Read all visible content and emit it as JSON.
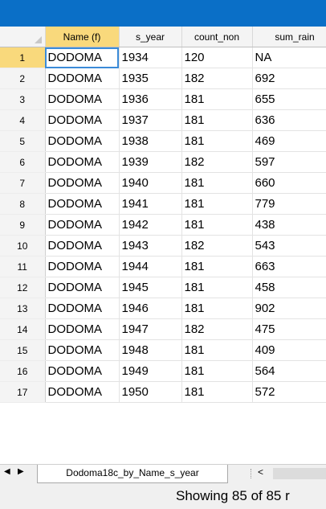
{
  "grid": {
    "columns": [
      "Name (f)",
      "s_year",
      "count_non",
      "sum_rain"
    ],
    "rows": [
      {
        "num": "1",
        "name": "DODOMA",
        "year": "1934",
        "count": "120",
        "rain": "NA"
      },
      {
        "num": "2",
        "name": "DODOMA",
        "year": "1935",
        "count": "182",
        "rain": "692"
      },
      {
        "num": "3",
        "name": "DODOMA",
        "year": "1936",
        "count": "181",
        "rain": "655"
      },
      {
        "num": "4",
        "name": "DODOMA",
        "year": "1937",
        "count": "181",
        "rain": "636"
      },
      {
        "num": "5",
        "name": "DODOMA",
        "year": "1938",
        "count": "181",
        "rain": "469"
      },
      {
        "num": "6",
        "name": "DODOMA",
        "year": "1939",
        "count": "182",
        "rain": "597"
      },
      {
        "num": "7",
        "name": "DODOMA",
        "year": "1940",
        "count": "181",
        "rain": "660"
      },
      {
        "num": "8",
        "name": "DODOMA",
        "year": "1941",
        "count": "181",
        "rain": "779"
      },
      {
        "num": "9",
        "name": "DODOMA",
        "year": "1942",
        "count": "181",
        "rain": "438"
      },
      {
        "num": "10",
        "name": "DODOMA",
        "year": "1943",
        "count": "182",
        "rain": "543"
      },
      {
        "num": "11",
        "name": "DODOMA",
        "year": "1944",
        "count": "181",
        "rain": "663"
      },
      {
        "num": "12",
        "name": "DODOMA",
        "year": "1945",
        "count": "181",
        "rain": "458"
      },
      {
        "num": "13",
        "name": "DODOMA",
        "year": "1946",
        "count": "181",
        "rain": "902"
      },
      {
        "num": "14",
        "name": "DODOMA",
        "year": "1947",
        "count": "182",
        "rain": "475"
      },
      {
        "num": "15",
        "name": "DODOMA",
        "year": "1948",
        "count": "181",
        "rain": "409"
      },
      {
        "num": "16",
        "name": "DODOMA",
        "year": "1949",
        "count": "181",
        "rain": "564"
      },
      {
        "num": "17",
        "name": "DODOMA",
        "year": "1950",
        "count": "181",
        "rain": "572"
      }
    ]
  },
  "tabs": {
    "active_sheet": "Dodoma18c_by_Name_s_year",
    "prev_icon": "triangle-left-icon",
    "next_icon": "triangle-right-icon",
    "scroll_left_icon": "chevron-left-icon"
  },
  "status": {
    "text": "Showing 85 of 85 r"
  },
  "colors": {
    "titlebar": "#0a6fc7",
    "selected_header": "#f9d97c",
    "active_cell_border": "#3b8bd8"
  }
}
